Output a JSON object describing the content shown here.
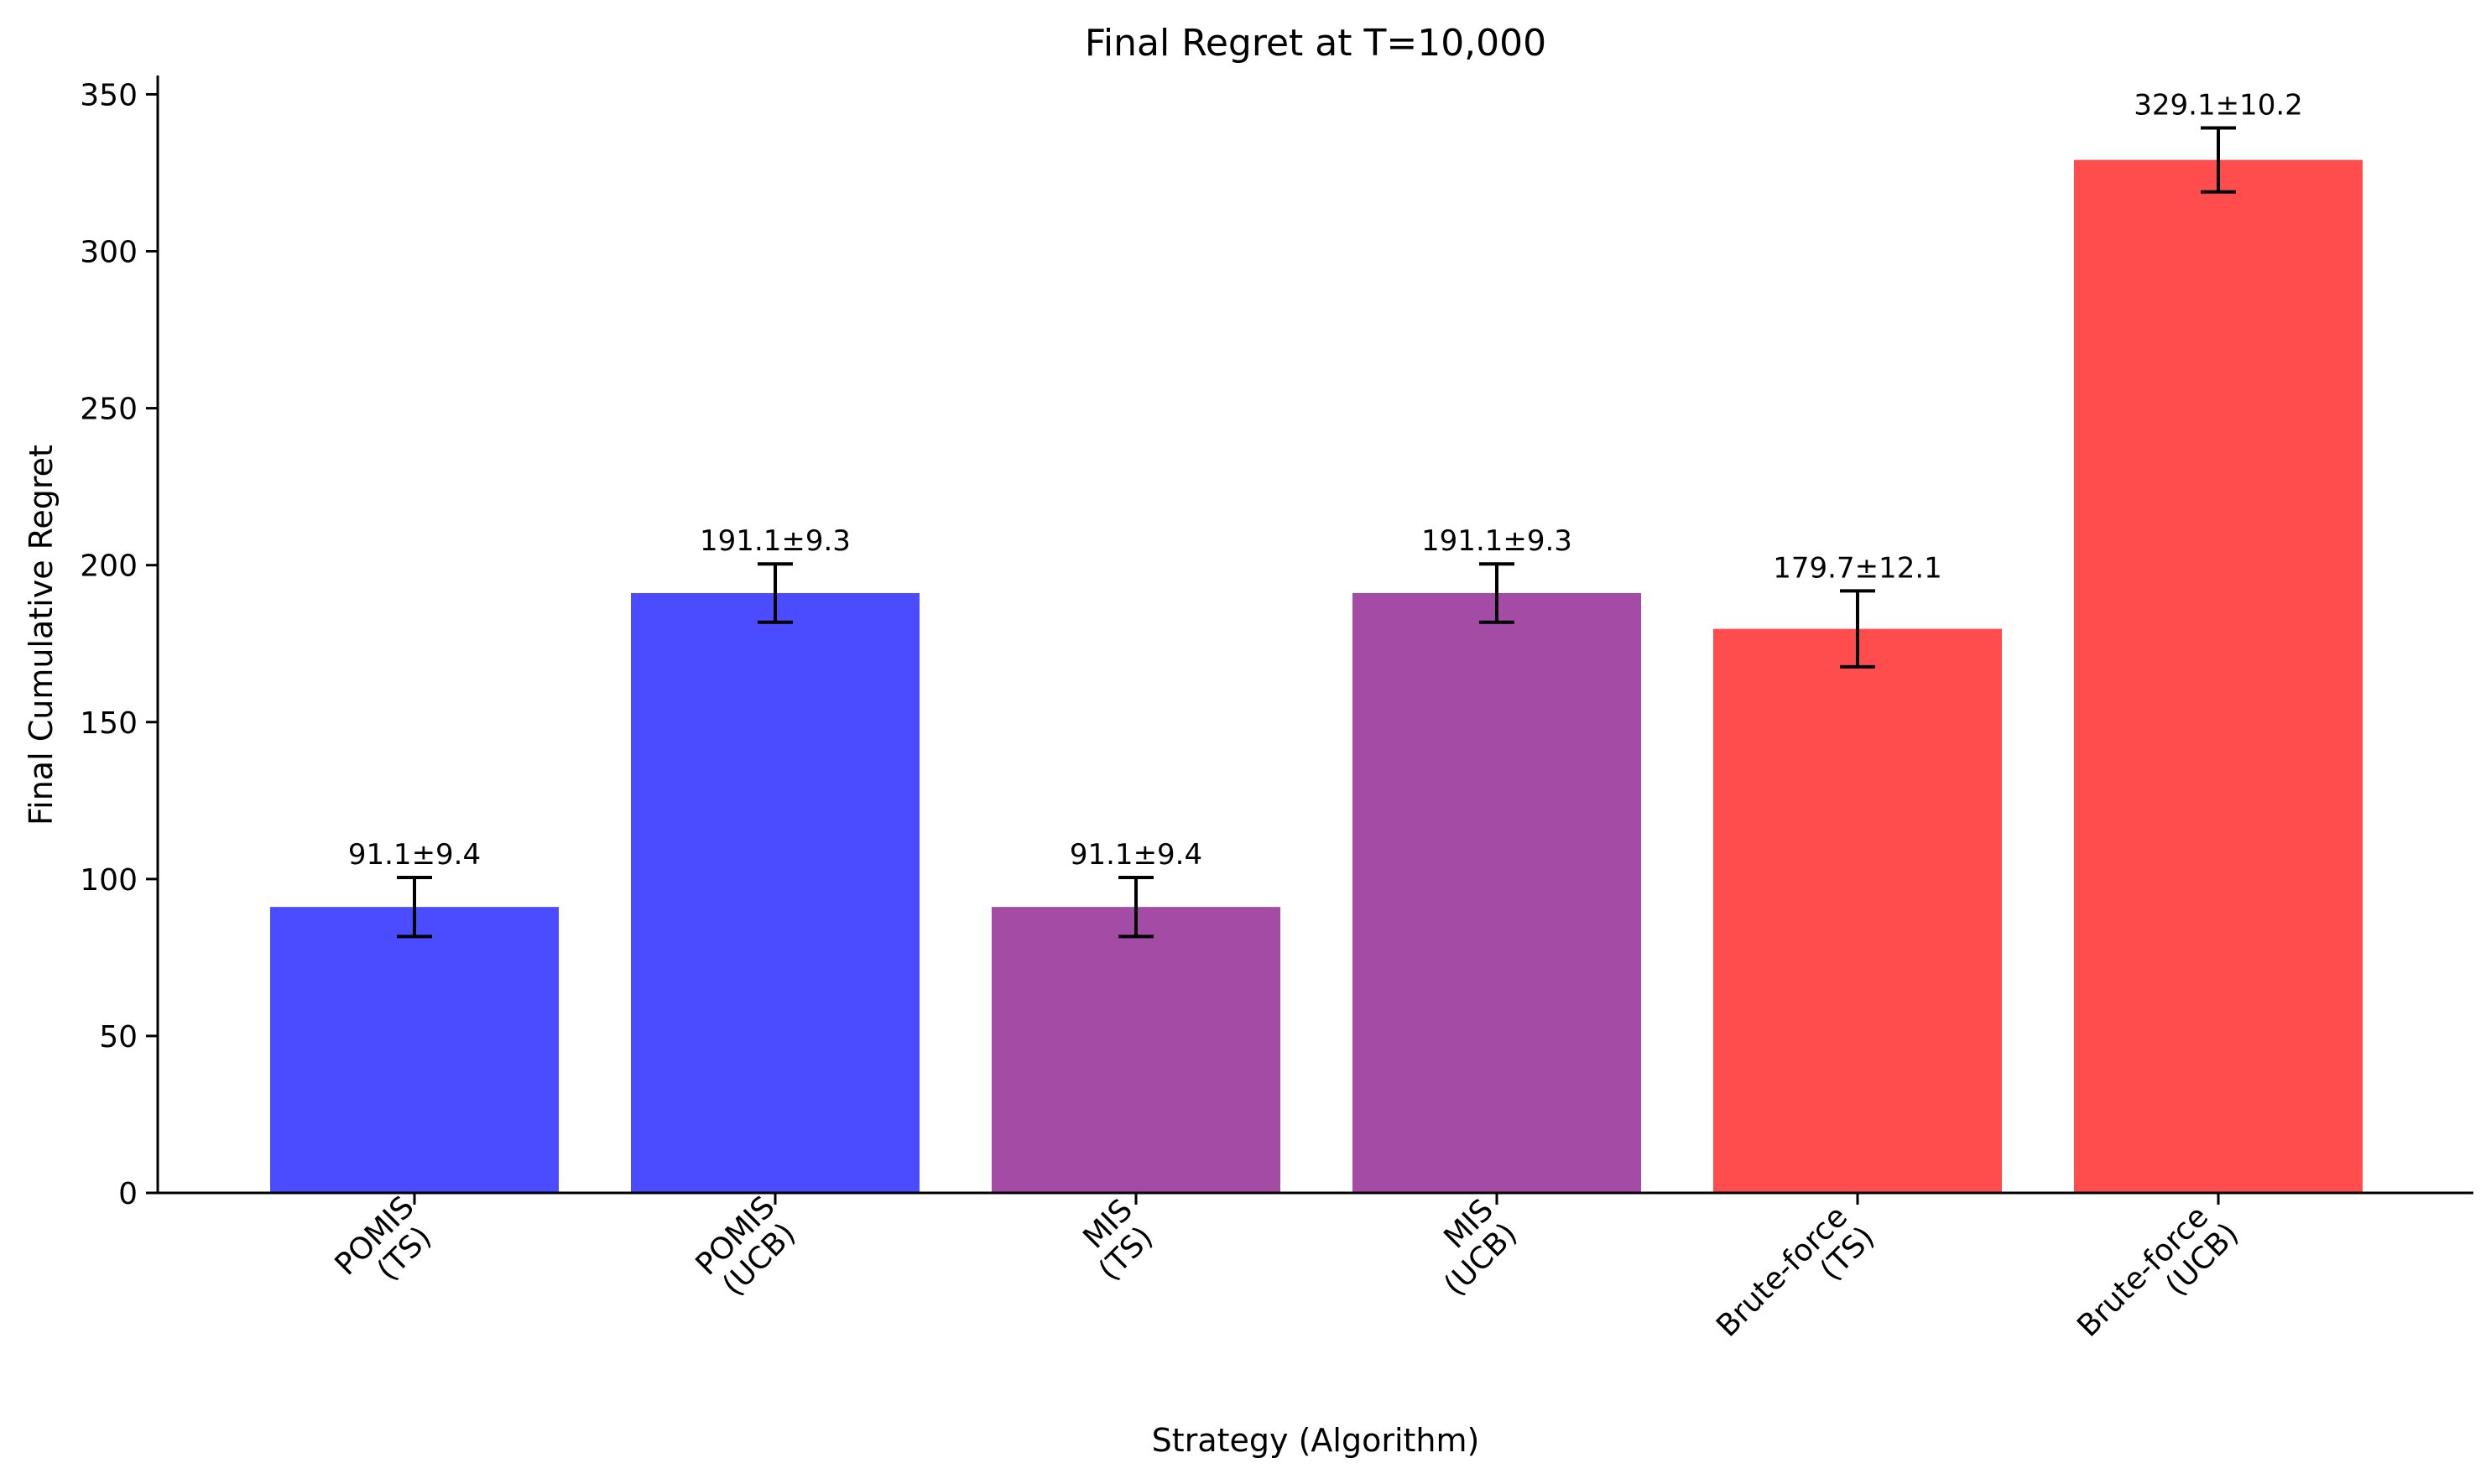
{
  "chart_data": {
    "type": "bar",
    "title": "Final Regret at T=10,000",
    "xlabel": "Strategy (Algorithm)",
    "ylabel": "Final Cumulative Regret",
    "ylim": [
      0,
      356
    ],
    "yticks": [
      0,
      50,
      100,
      150,
      200,
      250,
      300,
      350
    ],
    "grid": false,
    "categories": [
      [
        "POMIS",
        "(TS)"
      ],
      [
        "POMIS",
        "(UCB)"
      ],
      [
        "MIS",
        "(TS)"
      ],
      [
        "MIS",
        "(UCB)"
      ],
      [
        "Brute-force",
        "(TS)"
      ],
      [
        "Brute-force",
        "(UCB)"
      ]
    ],
    "values": [
      91.1,
      191.1,
      91.1,
      191.1,
      179.7,
      329.1
    ],
    "errors": [
      9.4,
      9.3,
      9.4,
      9.3,
      12.1,
      10.2
    ],
    "labels": [
      "91.1±9.4",
      "191.1±9.3",
      "91.1±9.4",
      "191.1±9.3",
      "179.7±12.1",
      "329.1±10.2"
    ],
    "colors": [
      "#4b4bff",
      "#4b4bff",
      "#a44ca5",
      "#a44ca5",
      "#ff4c4c",
      "#ff4c4c"
    ]
  }
}
